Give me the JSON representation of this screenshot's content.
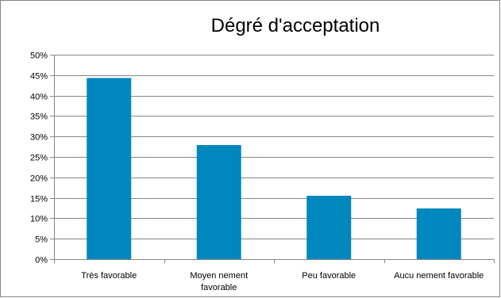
{
  "chart_data": {
    "type": "bar",
    "title": "Dégré d'acceptation",
    "categories": [
      [
        "Très favorable"
      ],
      [
        "Moyen nement",
        "favorable"
      ],
      [
        "Peu favorable"
      ],
      [
        "Aucu nement favorable"
      ]
    ],
    "values": [
      44.3,
      27.9,
      15.5,
      12.4
    ],
    "value_unit": "%",
    "ylim": [
      0,
      50
    ],
    "y_ticks": [
      "0%",
      "5%",
      "10%",
      "15%",
      "20%",
      "25%",
      "30%",
      "35%",
      "40%",
      "45%",
      "50%"
    ],
    "y_tick_values": [
      0,
      5,
      10,
      15,
      20,
      25,
      30,
      35,
      40,
      45,
      50
    ],
    "grid": true,
    "legend": "none",
    "bar_color": "#0087BE",
    "grid_color": "#868686",
    "axis_color": "#868686"
  }
}
